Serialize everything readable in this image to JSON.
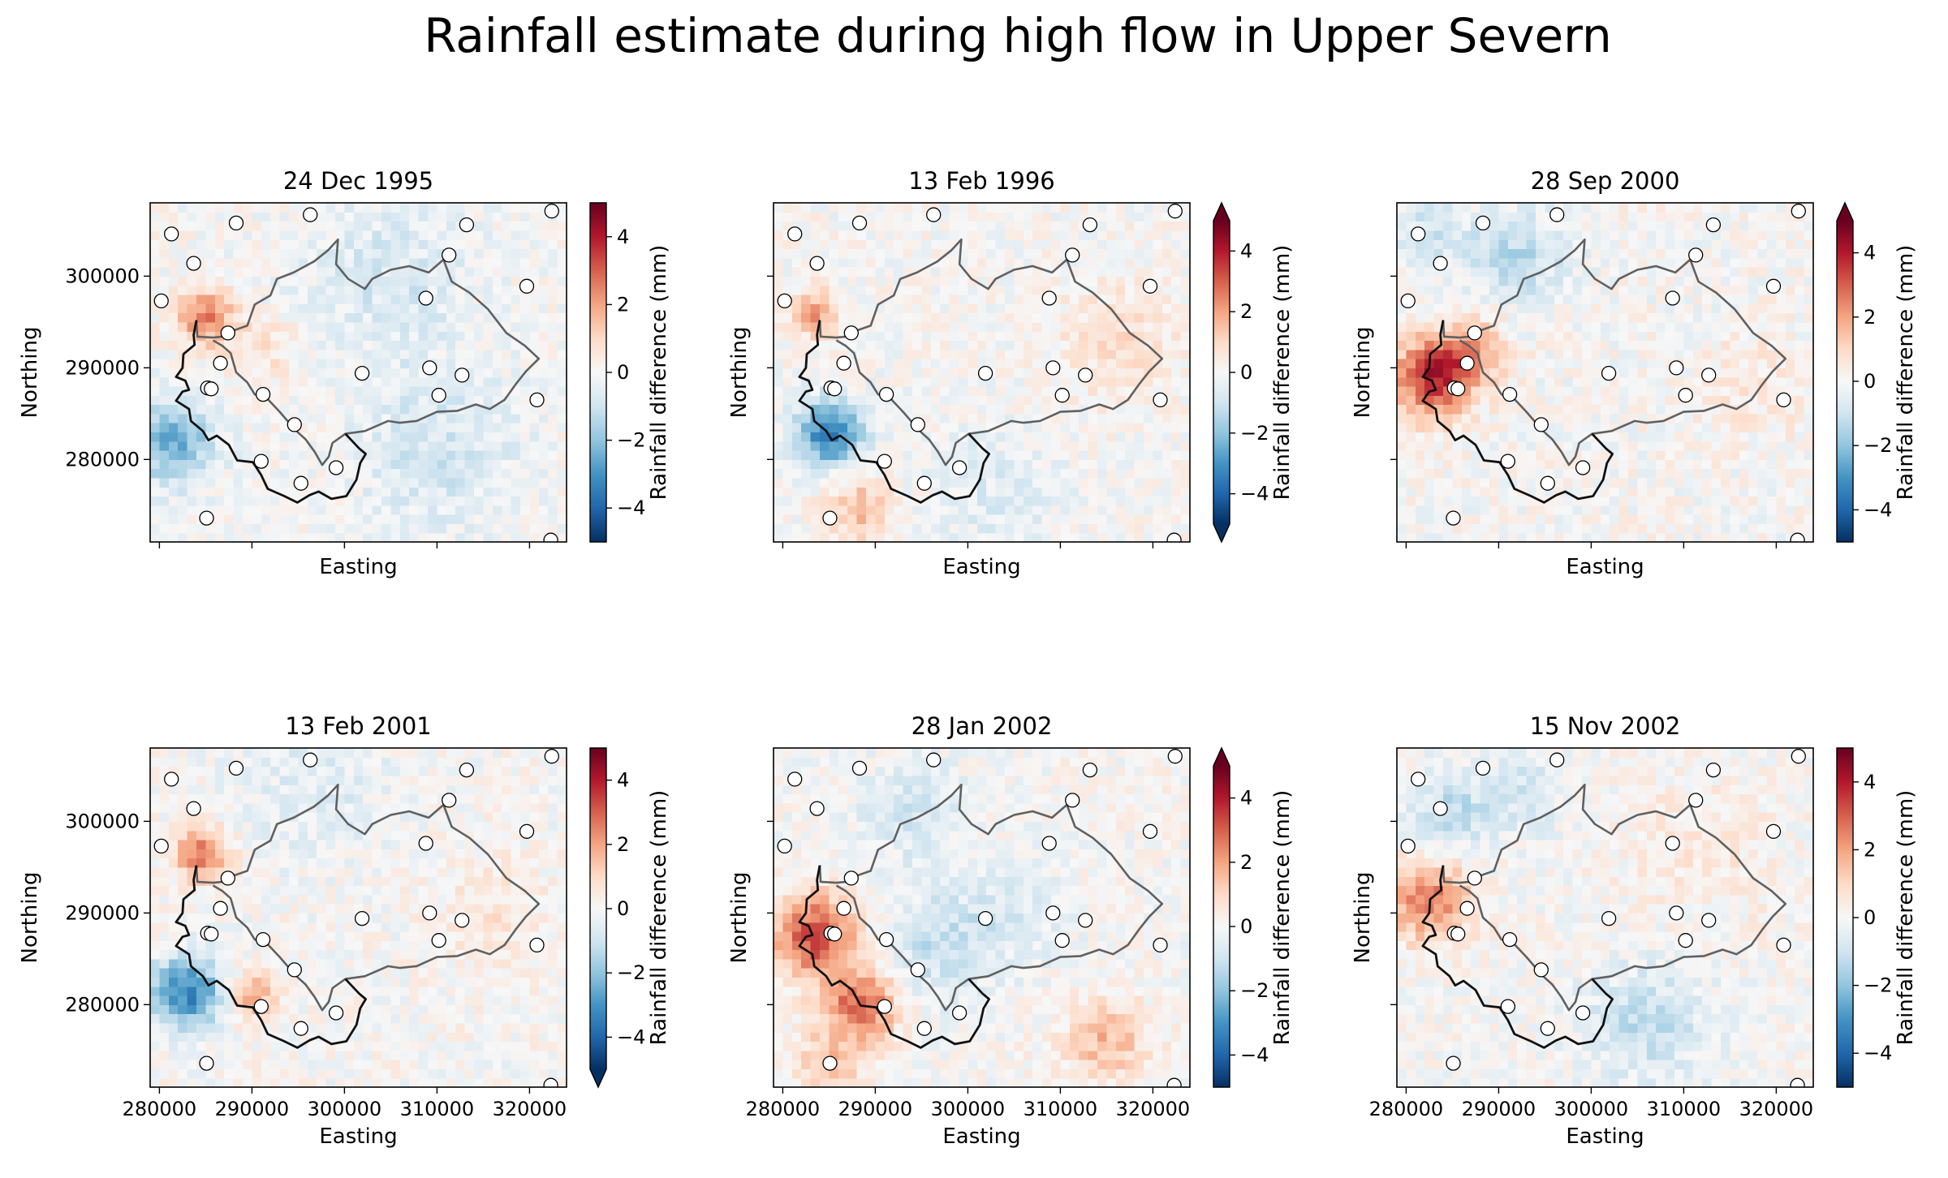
{
  "figure": {
    "title": "Rainfall estimate during high flow in Upper Severn"
  },
  "chart_data": {
    "type": "heatmap",
    "xlabel": "Easting",
    "ylabel": "Northing",
    "colorbar_label": "Rainfall difference (mm)",
    "colormap": "RdBu_r",
    "color_range": [
      -5,
      5
    ],
    "xlim": [
      279000,
      324000
    ],
    "ylim": [
      271000,
      308000
    ],
    "xticks": [
      280000,
      290000,
      300000,
      310000,
      320000
    ],
    "xtick_labels": [
      "280000",
      "290000",
      "300000",
      "310000",
      "320000"
    ],
    "yticks": [
      280000,
      290000,
      300000
    ],
    "ytick_labels": [
      "280000",
      "290000",
      "300000"
    ],
    "cbar_ticks": [
      -4,
      -2,
      0,
      2,
      4
    ],
    "cbar_tick_labels": [
      "−4",
      "−2",
      "0",
      "2",
      "4"
    ],
    "colors": {
      "catchment_inner": "#606060",
      "catchment_outer": "#111111",
      "gauge_face": "#ffffff",
      "gauge_edge": "#000000"
    },
    "catchment": [
      [
        284000,
        295200
      ],
      [
        284100,
        293400
      ],
      [
        285800,
        293300
      ],
      [
        286800,
        293400
      ],
      [
        287800,
        294000
      ],
      [
        289500,
        294600
      ],
      [
        290300,
        296900
      ],
      [
        292000,
        297900
      ],
      [
        292700,
        299700
      ],
      [
        294500,
        300400
      ],
      [
        296700,
        301600
      ],
      [
        298200,
        302800
      ],
      [
        299300,
        304000
      ],
      [
        299100,
        301300
      ],
      [
        300400,
        299700
      ],
      [
        302200,
        298600
      ],
      [
        303000,
        299700
      ],
      [
        305000,
        300700
      ],
      [
        307000,
        301100
      ],
      [
        309100,
        300400
      ],
      [
        310700,
        301800
      ],
      [
        311600,
        299400
      ],
      [
        313500,
        298200
      ],
      [
        315500,
        296400
      ],
      [
        317500,
        293800
      ],
      [
        319500,
        292400
      ],
      [
        321000,
        291000
      ],
      [
        319600,
        289600
      ],
      [
        318500,
        288200
      ],
      [
        317300,
        286500
      ],
      [
        315700,
        285500
      ],
      [
        314200,
        286000
      ],
      [
        312200,
        285300
      ],
      [
        310000,
        285200
      ],
      [
        307800,
        284200
      ],
      [
        306000,
        284000
      ],
      [
        304700,
        284200
      ],
      [
        302200,
        283100
      ],
      [
        300100,
        282800
      ],
      [
        298700,
        281800
      ],
      [
        298300,
        280300
      ],
      [
        297600,
        279400
      ],
      [
        296800,
        280800
      ],
      [
        295800,
        282200
      ],
      [
        294700,
        283200
      ],
      [
        293000,
        285200
      ],
      [
        291600,
        286700
      ],
      [
        290300,
        287100
      ],
      [
        289500,
        288400
      ],
      [
        288300,
        289500
      ],
      [
        287700,
        291600
      ],
      [
        286800,
        292400
      ],
      [
        285800,
        293000
      ]
    ],
    "catchment_outer": [
      [
        284000,
        295200
      ],
      [
        283700,
        293600
      ],
      [
        283800,
        292500
      ],
      [
        282600,
        291500
      ],
      [
        282500,
        290000
      ],
      [
        281800,
        289000
      ],
      [
        282800,
        288600
      ],
      [
        283200,
        287600
      ],
      [
        282500,
        287400
      ],
      [
        281800,
        286400
      ],
      [
        283200,
        285500
      ],
      [
        283400,
        284200
      ],
      [
        284700,
        283100
      ],
      [
        285300,
        282100
      ],
      [
        286200,
        282600
      ],
      [
        287500,
        281600
      ],
      [
        288400,
        279900
      ],
      [
        290100,
        279700
      ],
      [
        291000,
        278300
      ],
      [
        291700,
        276800
      ],
      [
        293500,
        276000
      ],
      [
        294900,
        275300
      ],
      [
        296200,
        276100
      ],
      [
        297200,
        276500
      ],
      [
        298600,
        275700
      ],
      [
        300200,
        276000
      ],
      [
        301300,
        277800
      ],
      [
        301700,
        279600
      ],
      [
        302300,
        280600
      ],
      [
        301600,
        281200
      ],
      [
        300100,
        282800
      ]
    ],
    "gauges": [
      [
        280200,
        297300
      ],
      [
        281300,
        304600
      ],
      [
        283700,
        301400
      ],
      [
        286600,
        290500
      ],
      [
        285200,
        287800
      ],
      [
        285600,
        287700
      ],
      [
        287400,
        293800
      ],
      [
        288300,
        305800
      ],
      [
        291200,
        287100
      ],
      [
        291000,
        279800
      ],
      [
        294600,
        283800
      ],
      [
        295300,
        277400
      ],
      [
        296300,
        306700
      ],
      [
        299100,
        279100
      ],
      [
        301900,
        289400
      ],
      [
        308800,
        297600
      ],
      [
        309200,
        290000
      ],
      [
        310200,
        287000
      ],
      [
        311300,
        302300
      ],
      [
        312700,
        289200
      ],
      [
        313200,
        305600
      ],
      [
        319700,
        298900
      ],
      [
        320800,
        286500
      ],
      [
        322400,
        307100
      ],
      [
        322300,
        271200
      ],
      [
        285100,
        273600
      ]
    ],
    "panels": [
      {
        "title": "24 Dec 1995",
        "extend": "neither",
        "bias": [
          {
            "x": 285000,
            "y": 295500,
            "r": 3000,
            "a": 2.6
          },
          {
            "x": 281500,
            "y": 282000,
            "r": 4500,
            "a": -2.6
          },
          {
            "x": 305000,
            "y": 300000,
            "r": 9000,
            "a": -0.8
          },
          {
            "x": 310000,
            "y": 281000,
            "r": 9000,
            "a": -0.9
          },
          {
            "x": 291000,
            "y": 292000,
            "r": 3500,
            "a": 0.8
          }
        ],
        "noise": 0.55,
        "seed": 11
      },
      {
        "title": "13 Feb 1996",
        "extend": "both",
        "bias": [
          {
            "x": 283500,
            "y": 296000,
            "r": 2500,
            "a": 2.2
          },
          {
            "x": 285000,
            "y": 283000,
            "r": 3500,
            "a": -3.6
          },
          {
            "x": 288500,
            "y": 274500,
            "r": 3500,
            "a": 1.6
          },
          {
            "x": 316000,
            "y": 293000,
            "r": 6000,
            "a": 0.9
          },
          {
            "x": 303000,
            "y": 276500,
            "r": 7000,
            "a": -0.6
          }
        ],
        "noise": 0.55,
        "seed": 23
      },
      {
        "title": "28 Sep 2000",
        "extend": "max",
        "bias": [
          {
            "x": 283000,
            "y": 289000,
            "r": 4200,
            "a": 4.0
          },
          {
            "x": 287500,
            "y": 292000,
            "r": 3500,
            "a": 1.6
          },
          {
            "x": 292000,
            "y": 302000,
            "r": 5000,
            "a": -1.3
          },
          {
            "x": 283000,
            "y": 305000,
            "r": 4000,
            "a": -0.9
          },
          {
            "x": 318000,
            "y": 288000,
            "r": 6000,
            "a": 0.5
          }
        ],
        "noise": 0.6,
        "seed": 37
      },
      {
        "title": "13 Feb 2001",
        "extend": "min",
        "bias": [
          {
            "x": 284500,
            "y": 296500,
            "r": 2800,
            "a": 2.8
          },
          {
            "x": 283000,
            "y": 281500,
            "r": 3800,
            "a": -3.4
          },
          {
            "x": 290000,
            "y": 281000,
            "r": 2500,
            "a": 1.9
          },
          {
            "x": 297000,
            "y": 304000,
            "r": 8000,
            "a": -0.6
          },
          {
            "x": 316000,
            "y": 290000,
            "r": 6000,
            "a": 0.6
          }
        ],
        "noise": 0.55,
        "seed": 41
      },
      {
        "title": "28 Jan 2002",
        "extend": "max",
        "bias": [
          {
            "x": 283500,
            "y": 287500,
            "r": 4500,
            "a": 3.4
          },
          {
            "x": 288500,
            "y": 280000,
            "r": 3800,
            "a": 3.0
          },
          {
            "x": 285000,
            "y": 273500,
            "r": 4000,
            "a": 1.4
          },
          {
            "x": 297000,
            "y": 286500,
            "r": 6000,
            "a": -1.1
          },
          {
            "x": 305000,
            "y": 290000,
            "r": 6000,
            "a": -0.6
          },
          {
            "x": 315000,
            "y": 276000,
            "r": 4500,
            "a": 1.6
          },
          {
            "x": 294000,
            "y": 301000,
            "r": 6000,
            "a": -0.8
          }
        ],
        "noise": 0.55,
        "seed": 53
      },
      {
        "title": "15 Nov 2002",
        "extend": "neither",
        "bias": [
          {
            "x": 282500,
            "y": 291500,
            "r": 4500,
            "a": 2.6
          },
          {
            "x": 285000,
            "y": 301000,
            "r": 4500,
            "a": -1.3
          },
          {
            "x": 306000,
            "y": 278000,
            "r": 6500,
            "a": -1.2
          },
          {
            "x": 293000,
            "y": 303000,
            "r": 4000,
            "a": -0.9
          },
          {
            "x": 312000,
            "y": 297000,
            "r": 8000,
            "a": 0.5
          }
        ],
        "noise": 0.55,
        "seed": 67
      }
    ]
  }
}
